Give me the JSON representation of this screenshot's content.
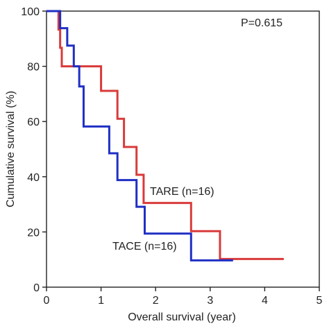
{
  "chart_data": {
    "type": "line",
    "step": true,
    "xlabel": "Overall survival (year)",
    "ylabel": "Cumulative survival (%)",
    "xlim": [
      0,
      5
    ],
    "ylim": [
      0,
      100
    ],
    "xticks": [
      "0",
      "1",
      "2",
      "3",
      "4",
      "5"
    ],
    "yticks": [
      "0",
      "20",
      "40",
      "60",
      "80",
      "100"
    ],
    "grid": false,
    "annotations": {
      "p_value": "P=0.615",
      "tare_label": "TARE (n=16)",
      "tace_label": "TACE (n=16)"
    },
    "series": [
      {
        "name": "TARE (n=16)",
        "color": "#d93a3a",
        "x": [
          0,
          0.22,
          0.25,
          0.28,
          1.0,
          1.3,
          1.42,
          1.65,
          1.78,
          2.65,
          3.18,
          4.35
        ],
        "y": [
          100,
          93.3,
          86.7,
          80,
          71.1,
          61.0,
          50.8,
          40.7,
          30.5,
          20.3,
          10.2,
          10.2
        ]
      },
      {
        "name": "TACE (n=16)",
        "color": "#1f2fc4",
        "x": [
          0,
          0.25,
          0.38,
          0.5,
          0.6,
          0.68,
          1.15,
          1.3,
          1.65,
          1.8,
          2.65,
          3.42
        ],
        "y": [
          100,
          93.8,
          87.5,
          80,
          72.7,
          58.2,
          48.5,
          38.8,
          29.1,
          19.4,
          9.7,
          9.7
        ]
      }
    ]
  }
}
